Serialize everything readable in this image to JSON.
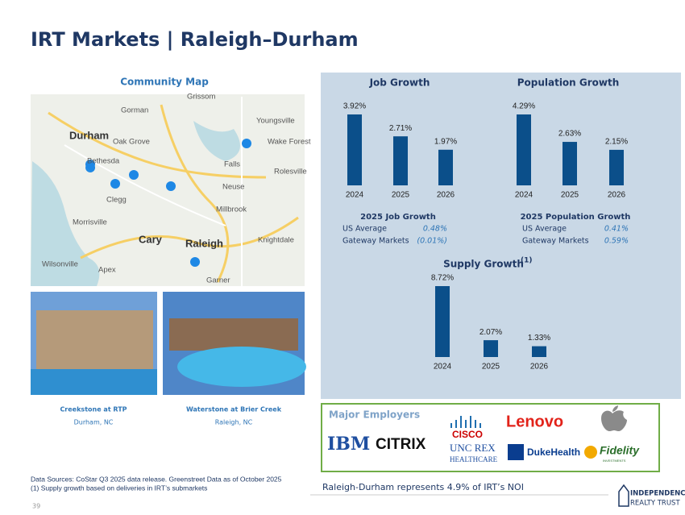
{
  "header": {
    "title": "IRT Markets | Raleigh–Durham"
  },
  "map": {
    "title": "Community Map",
    "labels": [
      "Gorman",
      "Grissom",
      "Youngsville",
      "Durham",
      "Oak Grove",
      "Wake Forest",
      "Bethesda",
      "Falls",
      "Rolesville",
      "Neuse",
      "Clegg",
      "Millbrook",
      "Morrisville",
      "Cary",
      "Raleigh",
      "Knightdale",
      "Apex",
      "Garner",
      "Wilsonville"
    ]
  },
  "photos": [
    {
      "name": "Creekstone at RTP",
      "location": "Durham, NC"
    },
    {
      "name": "Waterstone at Brier Creek",
      "location": "Raleigh, NC"
    }
  ],
  "chart_data": [
    {
      "type": "bar",
      "title": "Job Growth",
      "categories": [
        "2024",
        "2025",
        "2026"
      ],
      "values": [
        3.92,
        2.71,
        1.97
      ],
      "value_labels": [
        "3.92%",
        "2.71%",
        "1.97%"
      ],
      "color": "#0b4f8a"
    },
    {
      "type": "bar",
      "title": "Population Growth",
      "categories": [
        "2024",
        "2025",
        "2026"
      ],
      "values": [
        4.29,
        2.63,
        2.15
      ],
      "value_labels": [
        "4.29%",
        "2.63%",
        "2.15%"
      ],
      "color": "#0b4f8a"
    },
    {
      "type": "bar",
      "title": "Supply Growth",
      "title_note": "(1)",
      "categories": [
        "2024",
        "2025",
        "2026"
      ],
      "values": [
        8.72,
        2.07,
        1.33
      ],
      "value_labels": [
        "8.72%",
        "2.07%",
        "1.33%"
      ],
      "color": "#0b4f8a"
    }
  ],
  "job_summary": {
    "title": "2025 Job Growth",
    "rows": [
      [
        "US Average",
        "0.48%"
      ],
      [
        "Gateway Markets",
        "(0.01%)"
      ]
    ]
  },
  "population_summary": {
    "title": "2025 Population Growth",
    "rows": [
      [
        "US Average",
        "0.41%"
      ],
      [
        "Gateway Markets",
        "0.59%"
      ]
    ]
  },
  "employers": {
    "title": "Major Employers",
    "names": [
      "IBM",
      "CITRIX",
      "CISCO",
      "UNC REX",
      "HEALTHCARE",
      "Lenovo",
      "DukeHealth",
      "Fidelity",
      "INVESTMENTS"
    ]
  },
  "footnotes": [
    "Data Sources: CoStar Q3 2025 data release. Greenstreet Data as of October 2025",
    "(1)  Supply growth based on deliveries in IRT’s submarkets"
  ],
  "noi_note": "Raleigh-Durham represents 4.9% of IRT’s NOI",
  "page_number": "39",
  "logo": [
    "INDEPENDENCE",
    "REALTY TRUST"
  ]
}
